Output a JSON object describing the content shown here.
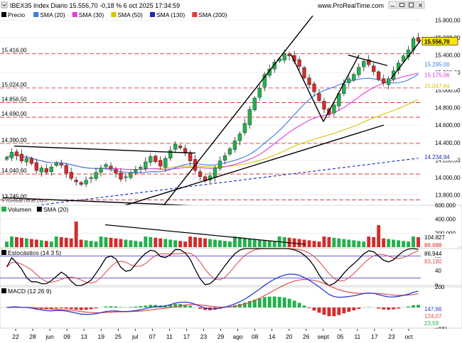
{
  "header": {
    "title": "IBEX35 Index Diario 15.556,70 -0,18 % 6 oct 2025 17:34:59",
    "brand": "www.ProRealTime.com",
    "watermark": "ProRealTime.com",
    "icons": [
      "dropdown-icon",
      "minimize-icon",
      "maximize-icon",
      "close-icon"
    ]
  },
  "colors": {
    "price": "#000000",
    "up": "#22b14c",
    "down": "#d42b2b",
    "sma20": "#3a7be0",
    "sma30": "#e23ae0",
    "sma50": "#d8c400",
    "sma130": "#1a2bb0",
    "sma200": "#e03c3c",
    "vol_up": "#22b14c",
    "vol_down": "#d42b2b",
    "stoch_k": "#000000",
    "stoch_d": "#e05050",
    "macd": "#2a3ad0",
    "signal": "#e05050"
  },
  "chart_data": [
    {
      "type": "line",
      "title": "IBEX35 Index Diario",
      "legend": [
        "Precio",
        "SMA (20)",
        "SMA (30)",
        "SMA (50)",
        "SMA (130)",
        "SMA (200)"
      ],
      "ylim": [
        13700,
        15900
      ],
      "y_ticks": [
        13800,
        14000,
        14200,
        14400,
        14600,
        14800,
        15000,
        15200,
        15400,
        15600,
        15800
      ],
      "x_ticks": [
        "22",
        "28",
        "jun",
        "09",
        "13",
        "19",
        "25",
        "jul",
        "07",
        "11",
        "17",
        "23",
        "29",
        "ago",
        "08",
        "14",
        "20",
        "26",
        "sept",
        "05",
        "11",
        "17",
        "23",
        "oct"
      ],
      "price_labels": [
        "15.416,00",
        "15.024,00",
        "14.856,50",
        "14.690,00",
        "14.390,00",
        "14.040,60",
        "13.745,00"
      ],
      "value_labels": [
        {
          "series": "Precio",
          "value": "15.556,70"
        },
        {
          "series": "SMA (20)",
          "value": "15.295,00"
        },
        {
          "series": "SMA (30)",
          "value": "15.175,06"
        },
        {
          "series": "SMA (50)",
          "value": "15.047,84"
        },
        {
          "series": "SMA (130)",
          "value": "14.234,94"
        }
      ],
      "close": [
        14230,
        14290,
        14250,
        14190,
        14220,
        14160,
        14080,
        14110,
        14060,
        14120,
        14170,
        14140,
        14050,
        13990,
        13950,
        13920,
        13970,
        14000,
        14060,
        14110,
        14150,
        14100,
        14050,
        13980,
        14010,
        14060,
        14090,
        14120,
        14180,
        14240,
        14180,
        14130,
        14220,
        14310,
        14380,
        14340,
        14280,
        14190,
        14080,
        14010,
        13960,
        14020,
        14110,
        14190,
        14250,
        14330,
        14420,
        14500,
        14620,
        14780,
        14910,
        15020,
        15180,
        15240,
        15320,
        15360,
        15420,
        15390,
        15330,
        15270,
        15140,
        15060,
        14980,
        14880,
        14780,
        14720,
        14830,
        14960,
        15070,
        15130,
        15180,
        15260,
        15330,
        15290,
        15210,
        15120,
        15080,
        15130,
        15220,
        15310,
        15390,
        15460,
        15590,
        15556.7
      ]
    },
    {
      "type": "bar",
      "title": "Volumen",
      "legend": [
        "Volumen",
        "SMA (20)"
      ],
      "ylim": [
        0,
        600000
      ],
      "y_ticks": [
        0,
        200000,
        400000,
        600000
      ],
      "value_labels": [
        "104.827",
        "86.688"
      ]
    },
    {
      "type": "line",
      "title": "Estocástico (14 3 5)",
      "ylim": [
        0,
        100
      ],
      "y_ticks": [
        0,
        20,
        40,
        60,
        80,
        100
      ],
      "value_labels": [
        "86,944",
        "83,180"
      ]
    },
    {
      "type": "line",
      "title": "MACD (12 26 9)",
      "legend": [
        "MACD",
        "Signal"
      ],
      "ylim": [
        -200,
        200
      ],
      "y_ticks": [
        -200,
        -100,
        0,
        100,
        200
      ],
      "value_labels": [
        "147,66",
        "124,07",
        "23,59"
      ]
    }
  ]
}
